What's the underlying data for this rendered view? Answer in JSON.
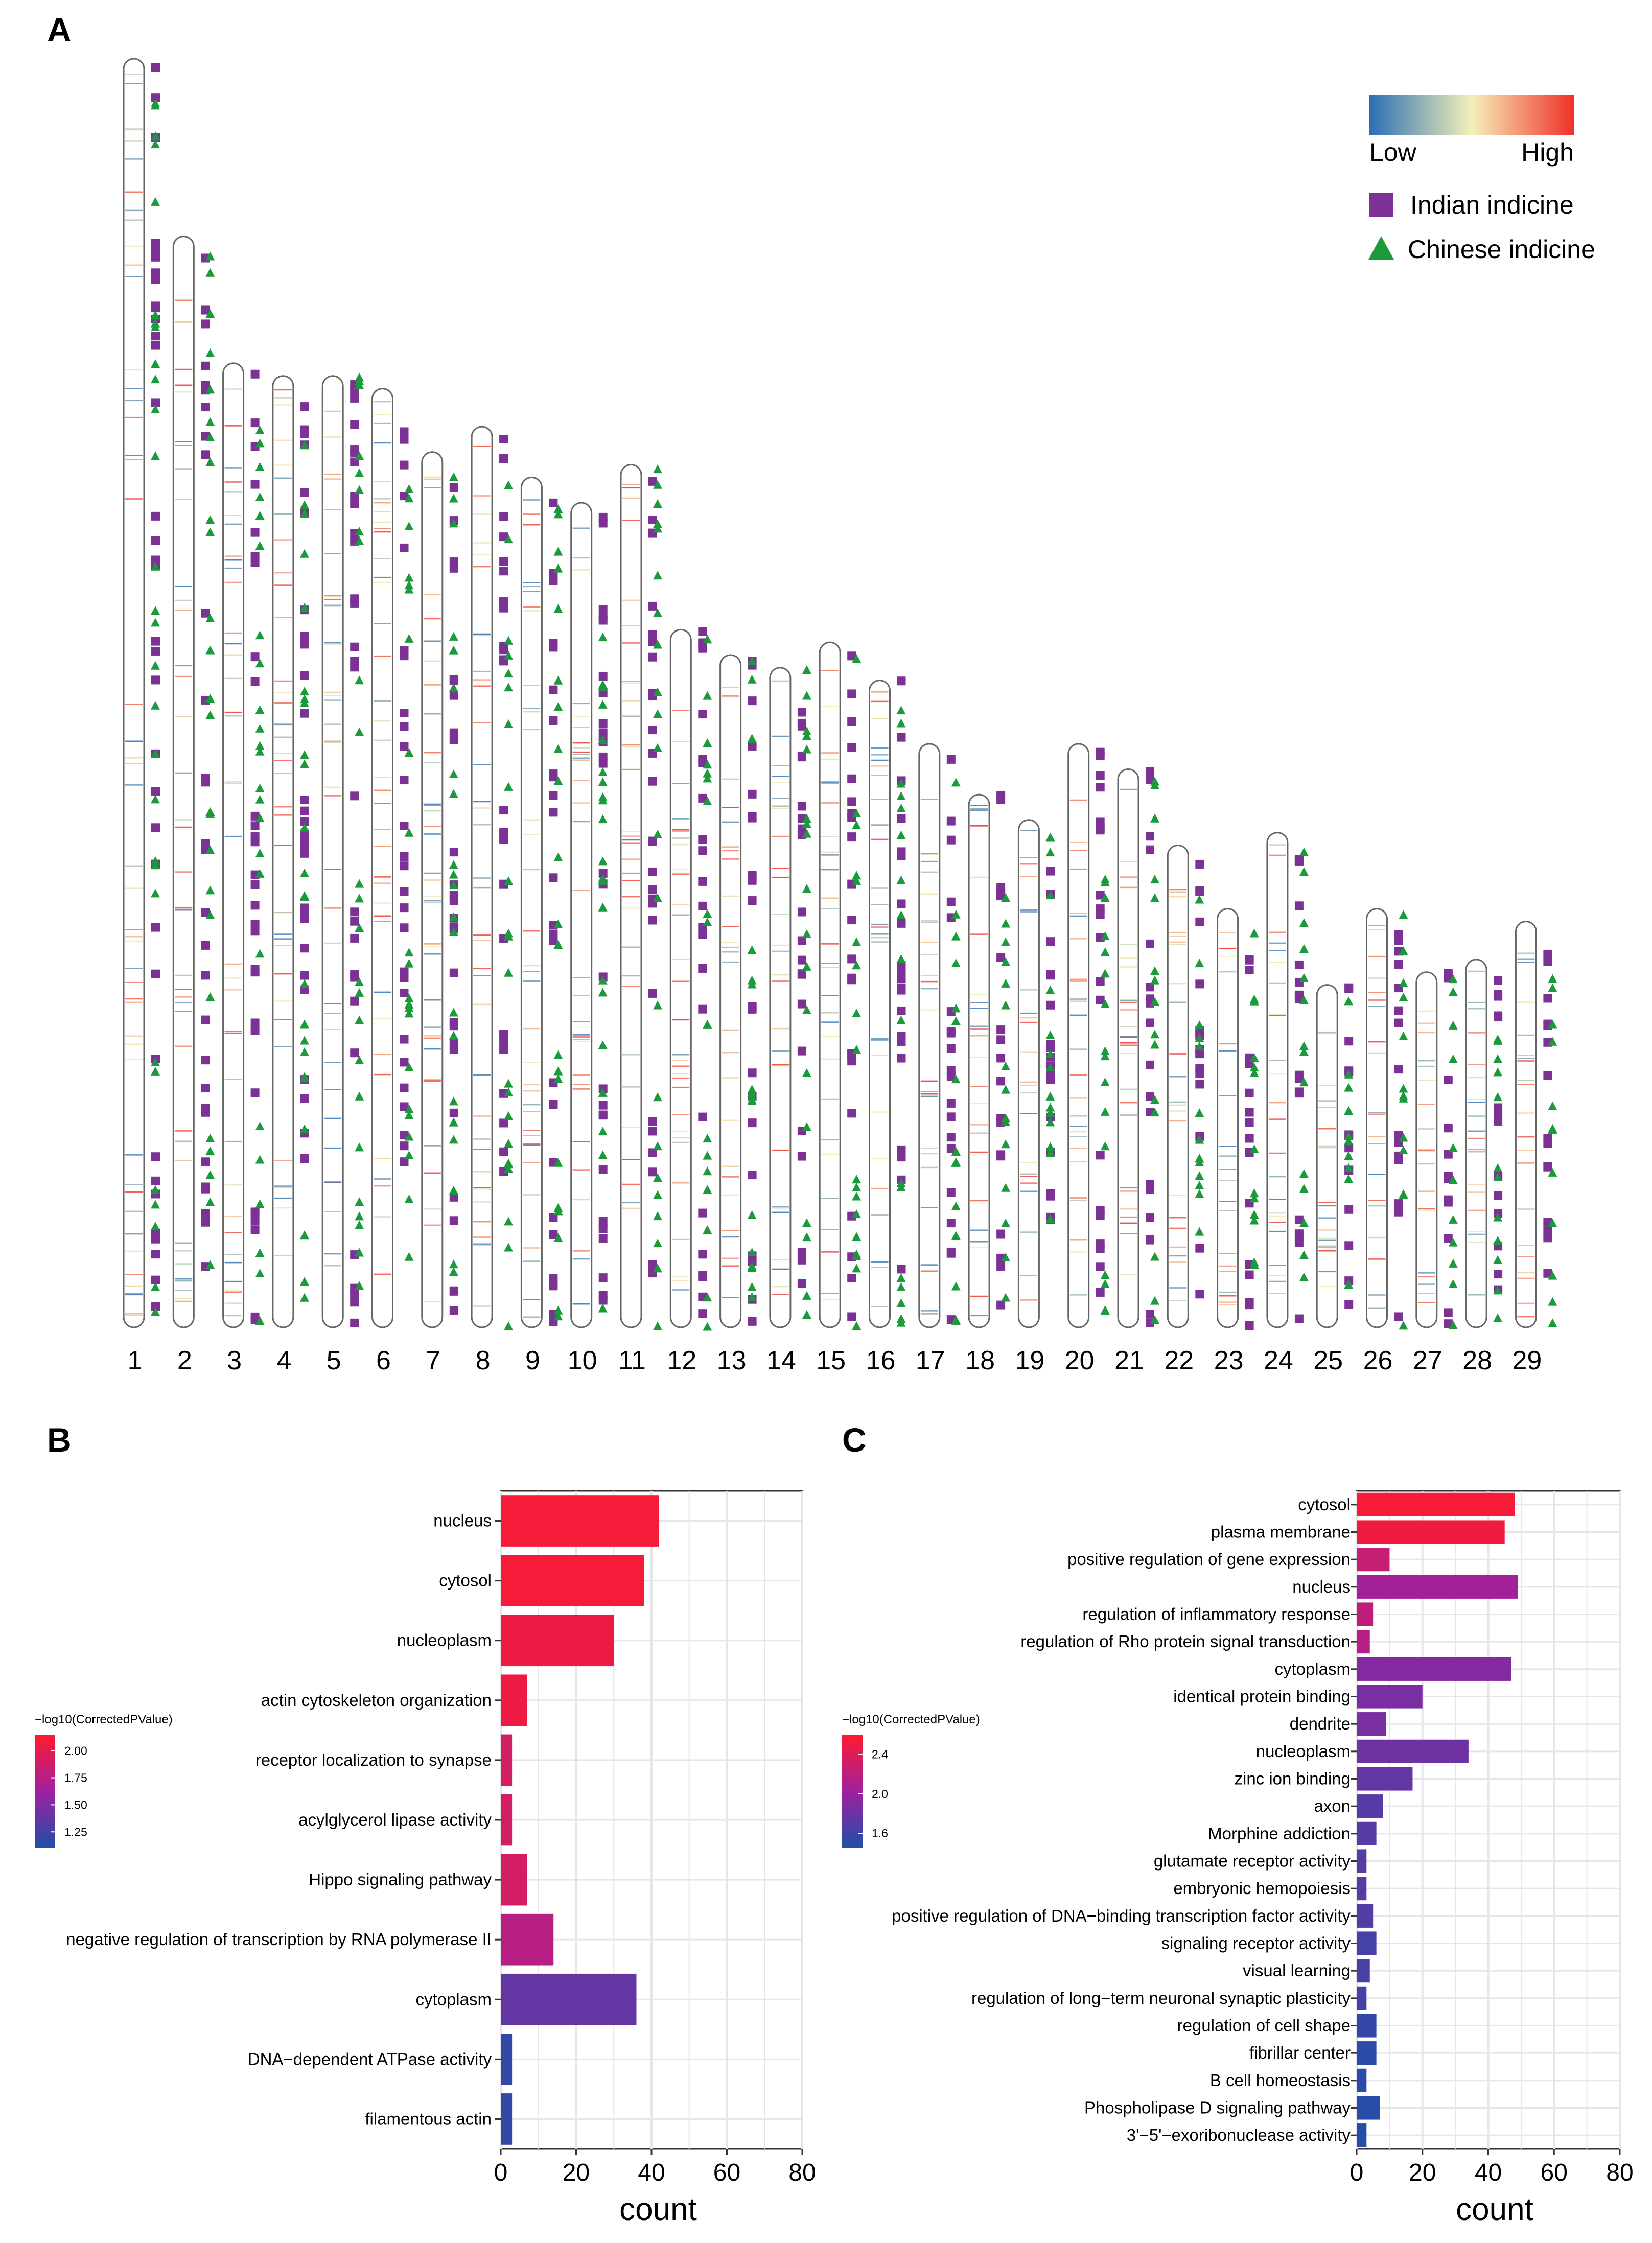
{
  "panels": {
    "a_letter": "A",
    "b_letter": "B",
    "c_letter": "C"
  },
  "chart_data": [
    {
      "type": "chromosome_ideogram",
      "panel": "A",
      "colors": {
        "indian": "#7B3294",
        "chinese": "#1A9A3A",
        "scale_low": "#2C6FB5",
        "scale_mid": "#F4F0B8",
        "scale_high": "#F0302A"
      },
      "chromosomes": [
        {
          "label": "1",
          "length": 1.0
        },
        {
          "label": "2",
          "length": 0.86
        },
        {
          "label": "3",
          "length": 0.76
        },
        {
          "label": "4",
          "length": 0.75
        },
        {
          "label": "5",
          "length": 0.75
        },
        {
          "label": "6",
          "length": 0.74
        },
        {
          "label": "7",
          "length": 0.69
        },
        {
          "label": "8",
          "length": 0.71
        },
        {
          "label": "9",
          "length": 0.67
        },
        {
          "label": "10",
          "length": 0.65
        },
        {
          "label": "11",
          "length": 0.68
        },
        {
          "label": "12",
          "length": 0.55
        },
        {
          "label": "13",
          "length": 0.53
        },
        {
          "label": "14",
          "length": 0.52
        },
        {
          "label": "15",
          "length": 0.54
        },
        {
          "label": "16",
          "length": 0.51
        },
        {
          "label": "17",
          "length": 0.46
        },
        {
          "label": "18",
          "length": 0.42
        },
        {
          "label": "19",
          "length": 0.4
        },
        {
          "label": "20",
          "length": 0.46
        },
        {
          "label": "21",
          "length": 0.44
        },
        {
          "label": "22",
          "length": 0.38
        },
        {
          "label": "23",
          "length": 0.33
        },
        {
          "label": "24",
          "length": 0.39
        },
        {
          "label": "25",
          "length": 0.27
        },
        {
          "label": "26",
          "length": 0.33
        },
        {
          "label": "27",
          "length": 0.28
        },
        {
          "label": "28",
          "length": 0.29
        },
        {
          "label": "29",
          "length": 0.32
        }
      ],
      "legend": {
        "low": "Low",
        "high": "High",
        "indian": "Indian indicine",
        "chinese": "Chinese indicine"
      }
    },
    {
      "type": "bar",
      "orientation": "horizontal",
      "panel": "B",
      "categories": [
        "nucleus",
        "cytosol",
        "nucleoplasm",
        "actin cytoskeleton organization",
        "receptor localization to synapse",
        "acylglycerol lipase activity",
        "Hippo signaling pathway",
        "negative regulation of transcription by RNA polymerase II",
        "cytoplasm",
        "DNA−dependent ATPase activity",
        "filamentous actin"
      ],
      "values": [
        42,
        38,
        30,
        7,
        3,
        3,
        7,
        14,
        36,
        3,
        3
      ],
      "color_values": [
        2.1,
        2.1,
        2.05,
        2.05,
        1.9,
        1.9,
        1.9,
        1.75,
        1.38,
        1.18,
        1.18
      ],
      "xlim": [
        0,
        80
      ],
      "xticks": [
        "0",
        "20",
        "40",
        "60",
        "80"
      ],
      "xlabel": "count",
      "legend_title": "−log10(CorrectedPValue)",
      "legend_ticks": [
        "2.00",
        "1.75",
        "1.50",
        "1.25"
      ],
      "legend_tick_values": [
        2.0,
        1.75,
        1.5,
        1.25
      ],
      "color_range": [
        1.1,
        2.15
      ]
    },
    {
      "type": "bar",
      "orientation": "horizontal",
      "panel": "C",
      "categories": [
        "cytosol",
        "plasma membrane",
        "positive regulation of gene expression",
        "nucleus",
        "regulation of inflammatory response",
        "regulation of Rho protein signal transduction",
        "cytoplasm",
        "identical protein binding",
        "dendrite",
        "nucleoplasm",
        "zinc ion binding",
        "axon",
        "Morphine addiction",
        "glutamate receptor activity",
        "embryonic hemopoiesis",
        "positive regulation of DNA−binding transcription factor activity",
        "signaling receptor activity",
        "visual learning",
        "regulation of long−term neuronal synaptic plasticity",
        "regulation of cell shape",
        "fibrillar center",
        "B cell homeostasis",
        "Phospholipase D signaling pathway",
        "3'−5'−exoribonuclease activity"
      ],
      "values": [
        48,
        45,
        10,
        49,
        5,
        4,
        47,
        20,
        9,
        34,
        17,
        8,
        6,
        3,
        3,
        5,
        6,
        4,
        3,
        6,
        6,
        3,
        7,
        3
      ],
      "color_values": [
        2.55,
        2.5,
        2.25,
        2.05,
        2.2,
        2.15,
        1.9,
        1.85,
        1.85,
        1.8,
        1.75,
        1.7,
        1.7,
        1.7,
        1.7,
        1.68,
        1.62,
        1.62,
        1.62,
        1.55,
        1.5,
        1.5,
        1.48,
        1.48
      ],
      "xlim": [
        0,
        80
      ],
      "xticks": [
        "0",
        "20",
        "40",
        "60",
        "80"
      ],
      "xlabel": "count",
      "legend_title": "−log10(CorrectedPValue)",
      "legend_ticks": [
        "2.4",
        "2.0",
        "1.6"
      ],
      "legend_tick_values": [
        2.4,
        2.0,
        1.6
      ],
      "color_range": [
        1.45,
        2.6
      ]
    }
  ]
}
